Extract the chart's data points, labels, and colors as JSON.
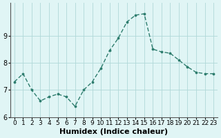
{
  "x": [
    0,
    1,
    2,
    3,
    4,
    5,
    6,
    7,
    8,
    9,
    10,
    11,
    12,
    13,
    14,
    15,
    16,
    17,
    18,
    19,
    20,
    21,
    22,
    23
  ],
  "y": [
    7.3,
    7.6,
    7.0,
    6.6,
    6.75,
    6.85,
    6.75,
    6.4,
    7.0,
    7.3,
    7.8,
    8.45,
    8.9,
    9.5,
    9.75,
    9.8,
    8.5,
    8.4,
    8.35,
    8.1,
    7.85,
    7.65,
    7.6,
    7.6
  ],
  "xlabel": "Humidex (Indice chaleur)",
  "ylabel": "",
  "ylim": [
    6.0,
    10.2
  ],
  "yticks": [
    6,
    7,
    8,
    9
  ],
  "xlim": [
    -0.5,
    23.5
  ],
  "xticks": [
    0,
    1,
    2,
    3,
    4,
    5,
    6,
    7,
    8,
    9,
    10,
    11,
    12,
    13,
    14,
    15,
    16,
    17,
    18,
    19,
    20,
    21,
    22,
    23
  ],
  "line_color": "#2e7d6e",
  "marker_color": "#2e7d6e",
  "bg_color": "#e0f5f5",
  "grid_color": "#b0d8d8",
  "tick_label_fontsize": 6.5,
  "xlabel_fontsize": 8
}
